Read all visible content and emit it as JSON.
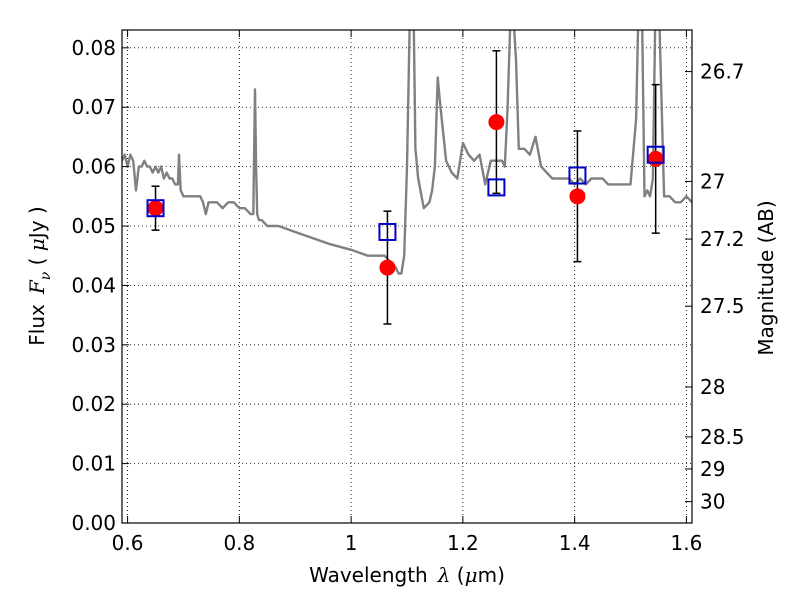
{
  "chart_data": {
    "type": "scatter",
    "xlabel_text": "Wavelength",
    "xlabel_symbol": "λ",
    "xlabel_unit_open": " (",
    "xlabel_unit_mu": "μ",
    "xlabel_unit_close": "m)",
    "ylabel_text": "Flux",
    "ylabel_symbol": "F",
    "ylabel_subscript": "ν",
    "ylabel_unit_open": " ( ",
    "ylabel_unit_mu": "μ",
    "ylabel_unit_close": "Jy )",
    "y2label": "Magnitude (AB)",
    "xlim": [
      0.59,
      1.61
    ],
    "ylim": [
      0.0,
      0.083
    ],
    "grid": true,
    "grid_style": "dotted",
    "x_ticks": [
      {
        "value": 0.6,
        "label": "0.6"
      },
      {
        "value": 0.8,
        "label": "0.8"
      },
      {
        "value": 1.0,
        "label": "1"
      },
      {
        "value": 1.2,
        "label": "1.2"
      },
      {
        "value": 1.4,
        "label": "1.4"
      },
      {
        "value": 1.6,
        "label": "1.6"
      }
    ],
    "y_ticks": [
      {
        "value": 0.0,
        "label": "0.00"
      },
      {
        "value": 0.01,
        "label": "0.01"
      },
      {
        "value": 0.02,
        "label": "0.02"
      },
      {
        "value": 0.03,
        "label": "0.03"
      },
      {
        "value": 0.04,
        "label": "0.04"
      },
      {
        "value": 0.05,
        "label": "0.05"
      },
      {
        "value": 0.06,
        "label": "0.06"
      },
      {
        "value": 0.07,
        "label": "0.07"
      },
      {
        "value": 0.08,
        "label": "0.08"
      }
    ],
    "y2_ticks": [
      {
        "flux": 0.076,
        "label": "26.7"
      },
      {
        "flux": 0.0575,
        "label": "27"
      },
      {
        "flux": 0.0478,
        "label": "27.2"
      },
      {
        "flux": 0.0365,
        "label": "27.5"
      },
      {
        "flux": 0.0229,
        "label": "28"
      },
      {
        "flux": 0.0145,
        "label": "28.5"
      },
      {
        "flux": 0.0091,
        "label": "29"
      },
      {
        "flux": 0.0036,
        "label": "30"
      }
    ],
    "colors": {
      "spectrum": "#808080",
      "observed": "#ff0000",
      "model": "#0000cc",
      "errorbar": "#000000"
    },
    "series": [
      {
        "kind": "line",
        "x": [
          0.59,
          0.595,
          0.6,
          0.605,
          0.61,
          0.615,
          0.62,
          0.625,
          0.63,
          0.635,
          0.64,
          0.645,
          0.65,
          0.655,
          0.66,
          0.665,
          0.67,
          0.675,
          0.68,
          0.685,
          0.69,
          0.692,
          0.695,
          0.7,
          0.71,
          0.72,
          0.73,
          0.735,
          0.74,
          0.745,
          0.75,
          0.76,
          0.77,
          0.78,
          0.79,
          0.8,
          0.81,
          0.82,
          0.825,
          0.828,
          0.83,
          0.832,
          0.835,
          0.84,
          0.85,
          0.87,
          0.9,
          0.93,
          0.96,
          1.0,
          1.03,
          1.06,
          1.07,
          1.08,
          1.085,
          1.09,
          1.095,
          1.1,
          1.105,
          1.108,
          1.112,
          1.115,
          1.12,
          1.13,
          1.14,
          1.145,
          1.15,
          1.155,
          1.16,
          1.17,
          1.18,
          1.19,
          1.2,
          1.21,
          1.22,
          1.23,
          1.24,
          1.25,
          1.26,
          1.27,
          1.275,
          1.28,
          1.285,
          1.29,
          1.295,
          1.3,
          1.31,
          1.32,
          1.33,
          1.34,
          1.35,
          1.36,
          1.37,
          1.38,
          1.39,
          1.4,
          1.41,
          1.42,
          1.43,
          1.44,
          1.45,
          1.46,
          1.48,
          1.5,
          1.51,
          1.515,
          1.52,
          1.525,
          1.53,
          1.535,
          1.54,
          1.545,
          1.55,
          1.56,
          1.57,
          1.58,
          1.59,
          1.6,
          1.61
        ],
        "y": [
          0.061,
          0.062,
          0.06,
          0.062,
          0.061,
          0.056,
          0.06,
          0.06,
          0.061,
          0.06,
          0.06,
          0.059,
          0.06,
          0.059,
          0.06,
          0.058,
          0.059,
          0.058,
          0.058,
          0.057,
          0.057,
          0.062,
          0.056,
          0.055,
          0.055,
          0.055,
          0.055,
          0.054,
          0.052,
          0.054,
          0.054,
          0.054,
          0.053,
          0.054,
          0.054,
          0.053,
          0.053,
          0.052,
          0.052,
          0.073,
          0.06,
          0.052,
          0.051,
          0.051,
          0.05,
          0.05,
          0.049,
          0.048,
          0.047,
          0.046,
          0.045,
          0.045,
          0.044,
          0.043,
          0.042,
          0.042,
          0.045,
          0.06,
          0.085,
          0.09,
          0.085,
          0.063,
          0.058,
          0.053,
          0.054,
          0.056,
          0.06,
          0.075,
          0.07,
          0.061,
          0.059,
          0.058,
          0.064,
          0.062,
          0.061,
          0.062,
          0.057,
          0.061,
          0.061,
          0.061,
          0.06,
          0.07,
          0.085,
          0.086,
          0.078,
          0.063,
          0.063,
          0.062,
          0.065,
          0.06,
          0.059,
          0.058,
          0.058,
          0.058,
          0.058,
          0.057,
          0.058,
          0.057,
          0.058,
          0.058,
          0.058,
          0.057,
          0.057,
          0.057,
          0.068,
          0.09,
          0.09,
          0.055,
          0.056,
          0.055,
          0.058,
          0.09,
          0.09,
          0.055,
          0.055,
          0.054,
          0.054,
          0.055,
          0.054
        ],
        "color": "#808080"
      },
      {
        "kind": "observed",
        "points": [
          {
            "x": 0.65,
            "y": 0.053,
            "err": 0.0037
          },
          {
            "x": 1.065,
            "y": 0.043,
            "err": 0.0095
          },
          {
            "x": 1.26,
            "y": 0.0675,
            "err": 0.012
          },
          {
            "x": 1.405,
            "y": 0.055,
            "err": 0.011
          },
          {
            "x": 1.545,
            "y": 0.0613,
            "err": 0.0125
          }
        ]
      },
      {
        "kind": "model",
        "points": [
          {
            "x": 0.65,
            "y": 0.053
          },
          {
            "x": 1.065,
            "y": 0.049
          },
          {
            "x": 1.26,
            "y": 0.0565
          },
          {
            "x": 1.405,
            "y": 0.0585
          },
          {
            "x": 1.545,
            "y": 0.062
          }
        ]
      }
    ]
  }
}
